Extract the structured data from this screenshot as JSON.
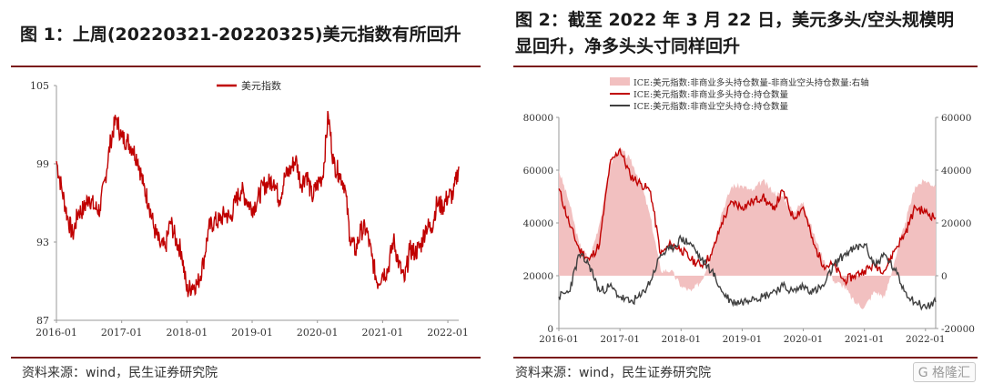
{
  "panel1": {
    "title": "图 1：上周(20220321-20220325)美元指数有所回升",
    "source": "资料来源：wind，民生证券研究院",
    "chart_data": {
      "type": "line",
      "legend": [
        "美元指数"
      ],
      "legend_position": "top-center",
      "x_ticks": [
        "2016-01",
        "2017-01",
        "2018-01",
        "2019-01",
        "2020-01",
        "2021-01",
        "2022-01"
      ],
      "x_range": [
        "2016-01",
        "2022-03"
      ],
      "y_ticks": [
        "87",
        "93",
        "99",
        "105"
      ],
      "ylim": [
        87,
        105
      ],
      "grid": false,
      "series": [
        {
          "name": "美元指数",
          "color": "#c00000",
          "points": [
            [
              "2016-01",
              99.2
            ],
            [
              "2016-02",
              97.0
            ],
            [
              "2016-03",
              95.0
            ],
            [
              "2016-04",
              93.5
            ],
            [
              "2016-05",
              95.3
            ],
            [
              "2016-06",
              95.5
            ],
            [
              "2016-07",
              96.5
            ],
            [
              "2016-08",
              95.6
            ],
            [
              "2016-09",
              95.5
            ],
            [
              "2016-10",
              98.0
            ],
            [
              "2016-11",
              100.8
            ],
            [
              "2016-12",
              102.5
            ],
            [
              "2017-01",
              101.0
            ],
            [
              "2017-02",
              100.8
            ],
            [
              "2017-03",
              100.2
            ],
            [
              "2017-04",
              99.3
            ],
            [
              "2017-05",
              97.3
            ],
            [
              "2017-06",
              96.0
            ],
            [
              "2017-07",
              94.0
            ],
            [
              "2017-08",
              92.8
            ],
            [
              "2017-09",
              92.5
            ],
            [
              "2017-10",
              94.6
            ],
            [
              "2017-11",
              93.1
            ],
            [
              "2017-12",
              92.3
            ],
            [
              "2018-01",
              89.2
            ],
            [
              "2018-02",
              89.7
            ],
            [
              "2018-03",
              89.8
            ],
            [
              "2018-04",
              91.4
            ],
            [
              "2018-05",
              94.0
            ],
            [
              "2018-06",
              94.6
            ],
            [
              "2018-07",
              94.6
            ],
            [
              "2018-08",
              95.2
            ],
            [
              "2018-09",
              94.8
            ],
            [
              "2018-10",
              96.2
            ],
            [
              "2018-11",
              97.0
            ],
            [
              "2018-12",
              96.2
            ],
            [
              "2019-01",
              95.6
            ],
            [
              "2019-02",
              96.2
            ],
            [
              "2019-03",
              97.3
            ],
            [
              "2019-04",
              97.5
            ],
            [
              "2019-05",
              97.8
            ],
            [
              "2019-06",
              96.2
            ],
            [
              "2019-07",
              98.0
            ],
            [
              "2019-08",
              98.5
            ],
            [
              "2019-09",
              99.4
            ],
            [
              "2019-10",
              97.4
            ],
            [
              "2019-11",
              98.3
            ],
            [
              "2019-12",
              96.4
            ],
            [
              "2020-01",
              97.4
            ],
            [
              "2020-02",
              98.1
            ],
            [
              "2020-03",
              102.8
            ],
            [
              "2020-04",
              99.0
            ],
            [
              "2020-05",
              98.3
            ],
            [
              "2020-06",
              97.4
            ],
            [
              "2020-07",
              93.4
            ],
            [
              "2020-08",
              92.3
            ],
            [
              "2020-09",
              93.9
            ],
            [
              "2020-10",
              94.0
            ],
            [
              "2020-11",
              91.9
            ],
            [
              "2020-12",
              89.9
            ],
            [
              "2021-01",
              90.6
            ],
            [
              "2021-02",
              90.9
            ],
            [
              "2021-03",
              93.2
            ],
            [
              "2021-04",
              91.3
            ],
            [
              "2021-05",
              90.0
            ],
            [
              "2021-06",
              92.4
            ],
            [
              "2021-07",
              92.2
            ],
            [
              "2021-08",
              92.7
            ],
            [
              "2021-09",
              94.2
            ],
            [
              "2021-10",
              94.1
            ],
            [
              "2021-11",
              96.0
            ],
            [
              "2021-12",
              95.7
            ],
            [
              "2022-01",
              96.5
            ],
            [
              "2022-02",
              96.6
            ],
            [
              "2022-03",
              98.8
            ]
          ]
        }
      ]
    }
  },
  "panel2": {
    "title_line1": "图 2：截至 2022 年 3 月 22 日，美元多头/空头规模明",
    "title_line2": "显回升，净多头头寸同样回升",
    "source": "资料来源：wind，民生证券研究院",
    "watermark": "格隆汇",
    "chart_data": {
      "type": "line",
      "legend": [
        {
          "label": "ICE:美元指数:非商业多头持仓数量-非商业空头持仓数量:右轴",
          "kind": "area",
          "color": "#f2c0c0"
        },
        {
          "label": "ICE:美元指数:非商业多头持仓:持仓数量",
          "kind": "line",
          "color": "#c00000"
        },
        {
          "label": "ICE:美元指数:非商业空头持仓:持仓数量",
          "kind": "line",
          "color": "#404040"
        }
      ],
      "legend_position": "top-center",
      "x_ticks": [
        "2016-01",
        "2017-01",
        "2018-01",
        "2019-01",
        "2020-01",
        "2021-01",
        "2022-01"
      ],
      "x_range": [
        "2016-01",
        "2022-03"
      ],
      "y_left_ticks": [
        "0",
        "20000",
        "40000",
        "60000",
        "80000"
      ],
      "ylim_left": [
        0,
        80000
      ],
      "y_right_ticks": [
        "-20000",
        "0",
        "20000",
        "40000",
        "60000"
      ],
      "ylim_right": [
        -20000,
        60000
      ],
      "grid": false,
      "series": [
        {
          "name": "ICE:美元指数:非商业多头持仓数量-非商业空头持仓数量:右轴",
          "axis": "right",
          "points": [
            [
              "2016-01",
              40000
            ],
            [
              "2016-03",
              28000
            ],
            [
              "2016-05",
              12000
            ],
            [
              "2016-07",
              6000
            ],
            [
              "2016-09",
              20000
            ],
            [
              "2016-11",
              42000
            ],
            [
              "2017-01",
              48000
            ],
            [
              "2017-03",
              44000
            ],
            [
              "2017-05",
              36000
            ],
            [
              "2017-07",
              22000
            ],
            [
              "2017-09",
              2000
            ],
            [
              "2017-11",
              2000
            ],
            [
              "2018-01",
              -4000
            ],
            [
              "2018-03",
              -6000
            ],
            [
              "2018-05",
              -2000
            ],
            [
              "2018-07",
              8000
            ],
            [
              "2018-09",
              24000
            ],
            [
              "2018-11",
              34000
            ],
            [
              "2019-01",
              34000
            ],
            [
              "2019-03",
              32000
            ],
            [
              "2019-05",
              36000
            ],
            [
              "2019-07",
              32000
            ],
            [
              "2019-09",
              30000
            ],
            [
              "2019-11",
              24000
            ],
            [
              "2020-01",
              28000
            ],
            [
              "2020-03",
              16000
            ],
            [
              "2020-05",
              6000
            ],
            [
              "2020-07",
              -2000
            ],
            [
              "2020-09",
              -4000
            ],
            [
              "2020-11",
              -10000
            ],
            [
              "2021-01",
              -12000
            ],
            [
              "2021-03",
              -6000
            ],
            [
              "2021-05",
              -8000
            ],
            [
              "2021-07",
              6000
            ],
            [
              "2021-09",
              20000
            ],
            [
              "2021-11",
              34000
            ],
            [
              "2022-01",
              36000
            ],
            [
              "2022-03",
              34000
            ]
          ]
        },
        {
          "name": "ICE:美元指数:非商业多头持仓:持仓数量",
          "axis": "left",
          "points": [
            [
              "2016-01",
              53000
            ],
            [
              "2016-03",
              40000
            ],
            [
              "2016-05",
              30000
            ],
            [
              "2016-07",
              26000
            ],
            [
              "2016-09",
              32000
            ],
            [
              "2016-11",
              62000
            ],
            [
              "2017-01",
              68000
            ],
            [
              "2017-03",
              58000
            ],
            [
              "2017-05",
              55000
            ],
            [
              "2017-07",
              52000
            ],
            [
              "2017-09",
              28000
            ],
            [
              "2017-11",
              32000
            ],
            [
              "2018-01",
              30000
            ],
            [
              "2018-03",
              26000
            ],
            [
              "2018-05",
              24000
            ],
            [
              "2018-07",
              28000
            ],
            [
              "2018-09",
              40000
            ],
            [
              "2018-11",
              48000
            ],
            [
              "2019-01",
              46000
            ],
            [
              "2019-03",
              48000
            ],
            [
              "2019-05",
              50000
            ],
            [
              "2019-07",
              45000
            ],
            [
              "2019-09",
              52000
            ],
            [
              "2019-11",
              42000
            ],
            [
              "2020-01",
              46000
            ],
            [
              "2020-03",
              32000
            ],
            [
              "2020-05",
              24000
            ],
            [
              "2020-07",
              24000
            ],
            [
              "2020-09",
              18000
            ],
            [
              "2020-11",
              20000
            ],
            [
              "2021-01",
              22000
            ],
            [
              "2021-03",
              24000
            ],
            [
              "2021-05",
              22000
            ],
            [
              "2021-07",
              30000
            ],
            [
              "2021-09",
              36000
            ],
            [
              "2021-11",
              46000
            ],
            [
              "2022-01",
              44000
            ],
            [
              "2022-03",
              42000
            ]
          ]
        },
        {
          "name": "ICE:美元指数:非商业空头持仓:持仓数量",
          "axis": "left",
          "points": [
            [
              "2016-01",
              12000
            ],
            [
              "2016-03",
              14000
            ],
            [
              "2016-05",
              28000
            ],
            [
              "2016-07",
              24000
            ],
            [
              "2016-09",
              14000
            ],
            [
              "2016-11",
              16000
            ],
            [
              "2017-01",
              12000
            ],
            [
              "2017-03",
              10000
            ],
            [
              "2017-05",
              12000
            ],
            [
              "2017-07",
              18000
            ],
            [
              "2017-09",
              28000
            ],
            [
              "2017-11",
              30000
            ],
            [
              "2018-01",
              34000
            ],
            [
              "2018-03",
              32000
            ],
            [
              "2018-05",
              26000
            ],
            [
              "2018-07",
              22000
            ],
            [
              "2018-09",
              14000
            ],
            [
              "2018-11",
              10000
            ],
            [
              "2019-01",
              10000
            ],
            [
              "2019-03",
              12000
            ],
            [
              "2019-05",
              12000
            ],
            [
              "2019-07",
              14000
            ],
            [
              "2019-09",
              16000
            ],
            [
              "2019-11",
              14000
            ],
            [
              "2020-01",
              16000
            ],
            [
              "2020-03",
              14000
            ],
            [
              "2020-05",
              16000
            ],
            [
              "2020-07",
              24000
            ],
            [
              "2020-09",
              28000
            ],
            [
              "2020-11",
              30000
            ],
            [
              "2021-01",
              32000
            ],
            [
              "2021-03",
              24000
            ],
            [
              "2021-05",
              28000
            ],
            [
              "2021-07",
              22000
            ],
            [
              "2021-09",
              14000
            ],
            [
              "2021-11",
              10000
            ],
            [
              "2022-01",
              8000
            ],
            [
              "2022-03",
              10000
            ]
          ]
        }
      ]
    }
  }
}
